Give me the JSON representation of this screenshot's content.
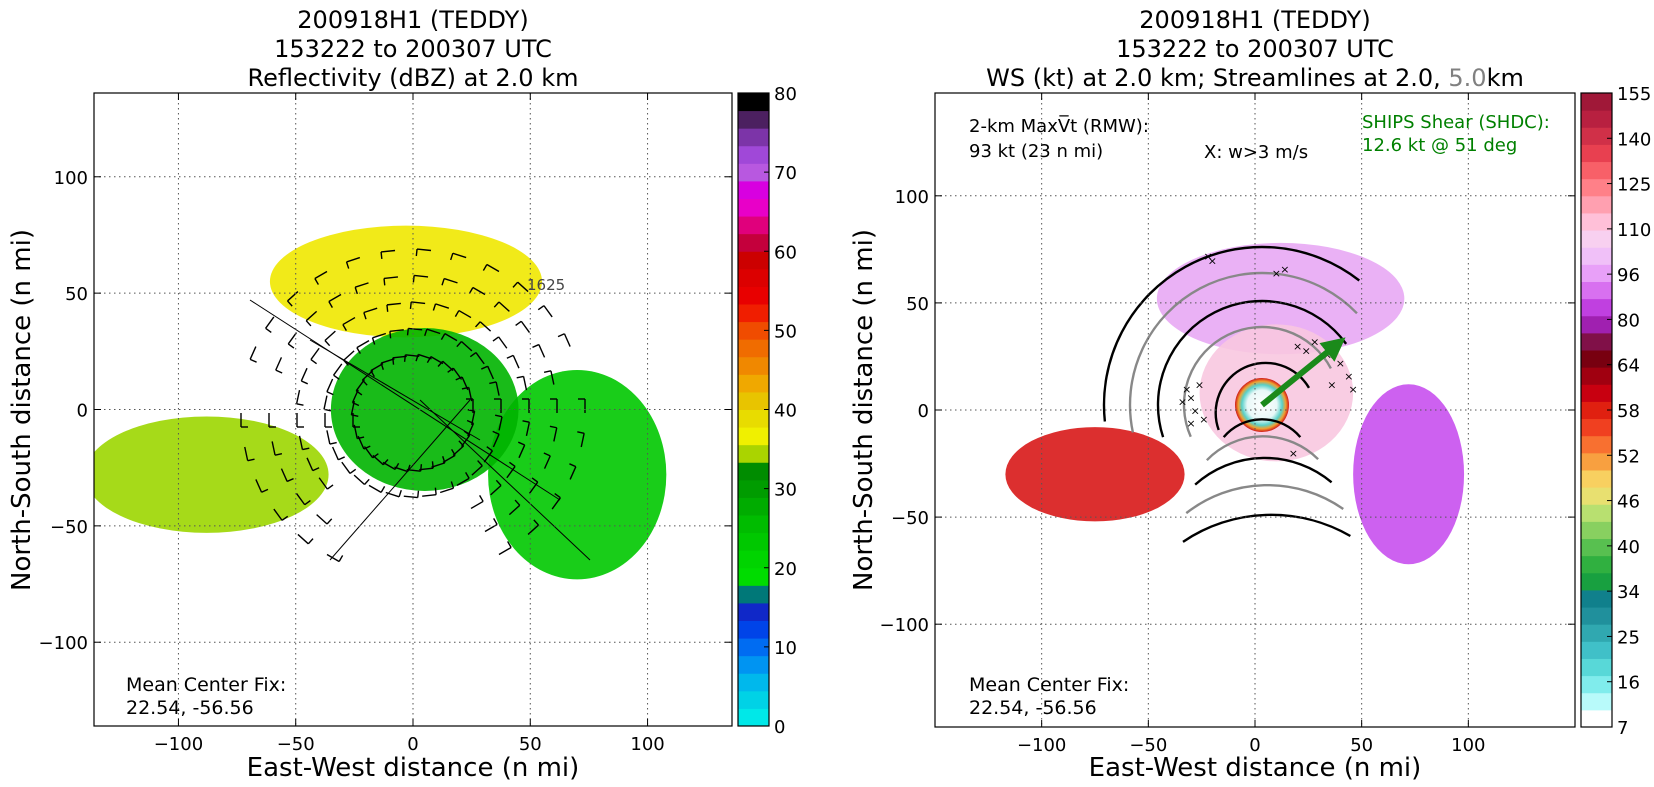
{
  "chart_data": [
    {
      "type": "heatmap",
      "title_lines": [
        "200918H1 (TEDDY)",
        "153222 to 200307 UTC",
        "Reflectivity (dBZ) at 2.0 km"
      ],
      "xlabel": "East-West distance (n mi)",
      "ylabel": "North-South distance (n mi)",
      "xlim": [
        -136,
        136
      ],
      "ylim": [
        -136,
        136
      ],
      "xticks": [
        -100,
        -50,
        0,
        50,
        100
      ],
      "yticks": [
        100,
        50,
        0,
        -50,
        -100
      ],
      "grid": true,
      "annotation_lines": [
        "Mean Center Fix:",
        "22.54, -56.56"
      ],
      "flight_track_labels": [
        "1625"
      ],
      "colorbar": {
        "label_values": [
          80,
          70,
          60,
          50,
          40,
          30,
          20,
          10,
          0
        ],
        "colors": [
          "#00e8e8",
          "#00d2e6",
          "#00b8ec",
          "#0094f2",
          "#006cf2",
          "#0044e8",
          "#1028c8",
          "#007878",
          "#00dc00",
          "#00d400",
          "#00c800",
          "#00bc00",
          "#00ac00",
          "#009c00",
          "#008c00",
          "#aad400",
          "#f0f000",
          "#e8dc00",
          "#e8c400",
          "#f0a800",
          "#f08800",
          "#f06c00",
          "#f04c00",
          "#f01e00",
          "#e80000",
          "#dc0000",
          "#cc0000",
          "#c4003c",
          "#e0007c",
          "#e800c8",
          "#d800e0",
          "#b858e0",
          "#a048d8",
          "#7c34a8",
          "#4c2060",
          "#000000"
        ]
      },
      "regions": [
        {
          "name": "north-arc",
          "cx": -3,
          "cy": 55,
          "rx": 58,
          "ry": 24,
          "color": "#f0e800"
        },
        {
          "name": "east-arm",
          "cx": 70,
          "cy": -28,
          "rx": 38,
          "ry": 45,
          "color": "#00c800"
        },
        {
          "name": "west-arm",
          "cx": -88,
          "cy": -28,
          "rx": 52,
          "ry": 25,
          "color": "#9cd600"
        },
        {
          "name": "core",
          "cx": 5,
          "cy": 0,
          "rx": 40,
          "ry": 35,
          "color": "#00b400"
        }
      ]
    },
    {
      "type": "heatmap",
      "title_lines": [
        "200918H1 (TEDDY)",
        "153222 to 200307 UTC"
      ],
      "title_line3_parts": [
        "WS (kt) at 2.0 km; Streamlines at 2.0, ",
        "5.0",
        "km"
      ],
      "xlabel": "East-West distance (n mi)",
      "ylabel": "North-South distance (n mi)",
      "xlim": [
        -150,
        150
      ],
      "ylim": [
        -148,
        148
      ],
      "xticks": [
        -100,
        -50,
        0,
        50,
        100
      ],
      "yticks": [
        100,
        50,
        0,
        -50,
        -100
      ],
      "grid": true,
      "rmw_label": "2-km MaxV̅t (RMW):",
      "rmw_value": "93 kt (23 n mi)",
      "w_label": "X: w>3 m/s",
      "shear_lines": [
        "SHIPS Shear (SHDC):",
        "12.6 kt @ 51 deg"
      ],
      "shear_color": "#008000",
      "shear_vector": {
        "speed_kt": 12.6,
        "direction_deg": 51
      },
      "annotation_lines": [
        "Mean Center Fix:",
        "22.54, -56.56"
      ],
      "colorbar": {
        "label_values": [
          155,
          140,
          125,
          110,
          96,
          80,
          64,
          58,
          52,
          46,
          40,
          34,
          25,
          16,
          7
        ],
        "colors": [
          "#ffffff",
          "#b8fafa",
          "#80ecec",
          "#58d8d8",
          "#40c0c8",
          "#30a8b0",
          "#20909c",
          "#10808c",
          "#18a040",
          "#30b040",
          "#58c050",
          "#88d060",
          "#b8e070",
          "#e8e070",
          "#f8d060",
          "#f8a040",
          "#f87030",
          "#f04020",
          "#e02010",
          "#c80010",
          "#a00010",
          "#780010",
          "#801048",
          "#a020b0",
          "#c040e0",
          "#d870f0",
          "#e8a0f8",
          "#f0c0f8",
          "#f8d0f0",
          "#ffc0d8",
          "#ffa0b0",
          "#ff8088",
          "#f86068",
          "#e84050",
          "#d03048",
          "#b82040",
          "#a01838"
        ]
      },
      "regions": [
        {
          "name": "north-band",
          "cx": 12,
          "cy": 52,
          "rx": 58,
          "ry": 26,
          "color": "#e8a8f4"
        },
        {
          "name": "east-arm",
          "cx": 72,
          "cy": -30,
          "rx": 26,
          "ry": 42,
          "color": "#c850ee"
        },
        {
          "name": "west-arm-red",
          "cx": -75,
          "cy": -30,
          "rx": 42,
          "ry": 22,
          "color": "#d81818"
        },
        {
          "name": "core-pink",
          "cx": 10,
          "cy": 8,
          "rx": 36,
          "ry": 32,
          "color": "#f8c8e0"
        }
      ]
    }
  ]
}
